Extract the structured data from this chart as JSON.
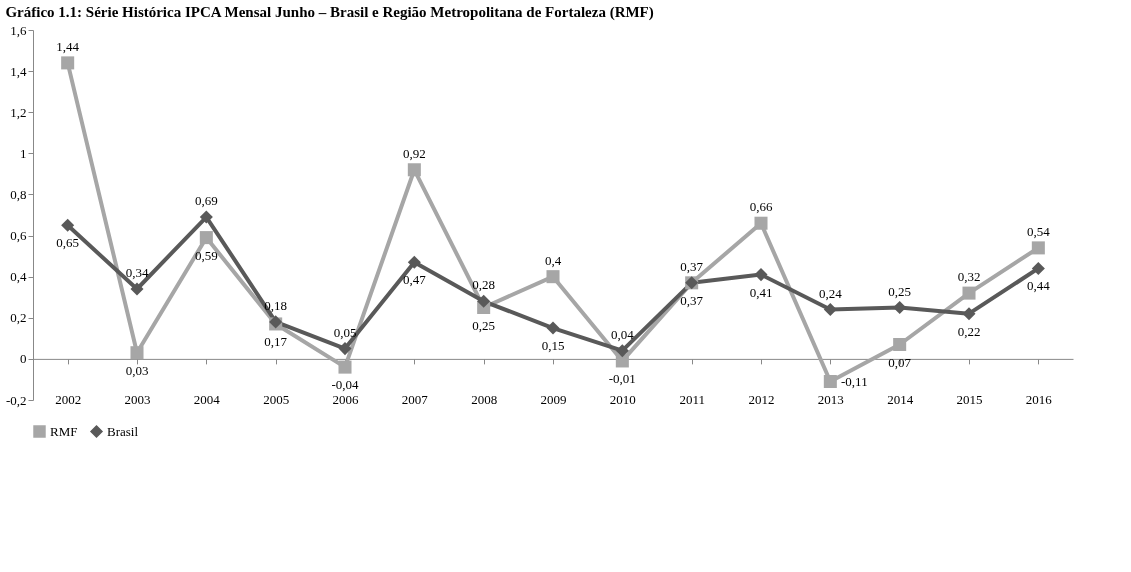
{
  "chart_data": {
    "type": "line",
    "title": "Gráfico 1.1: Série Histórica IPCA Mensal Junho – Brasil e Região Metropolitana de Fortaleza (RMF)",
    "categories": [
      "2002",
      "2003",
      "2004",
      "2005",
      "2006",
      "2007",
      "2008",
      "2009",
      "2010",
      "2011",
      "2012",
      "2013",
      "2014",
      "2015",
      "2016"
    ],
    "series": [
      {
        "name": "RMF",
        "color": "#a6a6a6",
        "marker": "square",
        "values": [
          1.44,
          0.03,
          0.59,
          0.17,
          -0.04,
          0.92,
          0.25,
          0.4,
          -0.01,
          0.37,
          0.66,
          -0.11,
          0.07,
          0.32,
          0.54
        ],
        "value_labels": [
          "1,44",
          "0,03",
          "0,59",
          "0,17",
          "-0,04",
          "0,92",
          "0,25",
          "0,4",
          "-0,01",
          "0,37",
          "0,66",
          "-0,11",
          "0,07",
          "0,32",
          "0,54"
        ]
      },
      {
        "name": "Brasil",
        "color": "#595959",
        "marker": "diamond",
        "values": [
          0.65,
          0.34,
          0.69,
          0.18,
          0.05,
          0.47,
          0.28,
          0.15,
          0.04,
          0.37,
          0.41,
          0.24,
          0.25,
          0.22,
          0.44
        ],
        "value_labels": [
          "0,65",
          "0,34",
          "0,69",
          "0,18",
          "0,05",
          "0,47",
          "0,28",
          "0,15",
          "0,04",
          "0,37",
          "0,41",
          "0,24",
          "0,25",
          "0,22",
          "0,44"
        ]
      }
    ],
    "ylim": [
      -0.2,
      1.6
    ],
    "yticks": [
      {
        "value": -0.2,
        "label": "-0,2"
      },
      {
        "value": 0,
        "label": "0"
      },
      {
        "value": 0.2,
        "label": "0,2"
      },
      {
        "value": 0.4,
        "label": "0,4"
      },
      {
        "value": 0.6,
        "label": "0,6"
      },
      {
        "value": 0.8,
        "label": "0,8"
      },
      {
        "value": 1,
        "label": "1"
      },
      {
        "value": 1.2,
        "label": "1,2"
      },
      {
        "value": 1.4,
        "label": "1,4"
      },
      {
        "value": 1.6,
        "label": "1,6"
      }
    ],
    "grid": false,
    "legend": "bottom",
    "line_style": "solid"
  }
}
